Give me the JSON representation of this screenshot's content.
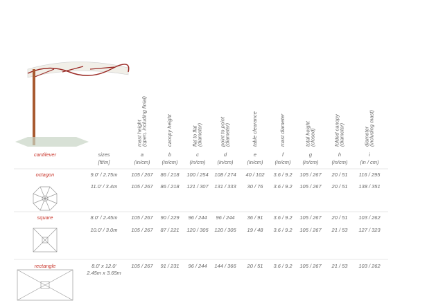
{
  "header": {
    "label": "cantilever",
    "sizes": "sizes",
    "sizes_unit": "[ft/m]",
    "columns": [
      {
        "label": [
          "mast height",
          "(open, including finial)"
        ],
        "letter": "a",
        "unit": "(in/cm)"
      },
      {
        "label": [
          "canopy height"
        ],
        "letter": "b",
        "unit": "(in/cm)"
      },
      {
        "label": [
          "flat to flat",
          "(diameter)"
        ],
        "letter": "c",
        "unit": "(in/cm)"
      },
      {
        "label": [
          "point to point",
          "(diameter)"
        ],
        "letter": "d",
        "unit": "(in/cm)"
      },
      {
        "label": [
          "table clearance"
        ],
        "letter": "e",
        "unit": "(in/cm)"
      },
      {
        "label": [
          "mast diameter"
        ],
        "letter": "f",
        "unit": "(in/cm)"
      },
      {
        "label": [
          "total height",
          "(closed)"
        ],
        "letter": "g",
        "unit": "(in/cm)"
      },
      {
        "label": [
          "folded canopy",
          "(diameter)"
        ],
        "letter": "h",
        "unit": "(in/cm)"
      },
      {
        "label": [
          "diameter",
          "(including mast)"
        ],
        "letter": "i",
        "unit": "(in / cm)"
      }
    ]
  },
  "groups": [
    {
      "name": "octagon",
      "rows": [
        [
          "9.0' / 2.75m",
          "105 / 267",
          "86 / 218",
          "100 / 254",
          "108 / 274",
          "40 / 102",
          "3.6 / 9.2",
          "105 / 267",
          "20 / 51",
          "116 / 295"
        ],
        [
          "11.0' / 3.4m",
          "105 / 267",
          "86 / 218",
          "121 / 307",
          "131 / 333",
          "30 / 76",
          "3.6 / 9.2",
          "105 / 267",
          "20 / 51",
          "138 / 351"
        ]
      ]
    },
    {
      "name": "square",
      "rows": [
        [
          "8.0' / 2.45m",
          "105 / 267",
          "90 / 229",
          "96 / 244",
          "96 / 244",
          "36 / 91",
          "3.6 / 9.2",
          "105 / 267",
          "20 / 51",
          "103 / 262"
        ],
        [
          "10.0' / 3.0m",
          "105 / 267",
          "87 / 221",
          "120 / 305",
          "120 / 305",
          "19 / 48",
          "3.6 / 9.2",
          "105 / 267",
          "21 / 53",
          "127 / 323"
        ]
      ]
    },
    {
      "name": "rectangle",
      "rows": [
        [
          [
            "8.0' x 12.0'",
            "2.45m x 3.65m"
          ],
          "105 / 267",
          "91 / 231",
          "96 / 244",
          "144 / 366",
          "20 / 51",
          "3.6 / 9.2",
          "105 / 267",
          "21 / 53",
          "103 / 262"
        ]
      ]
    }
  ]
}
